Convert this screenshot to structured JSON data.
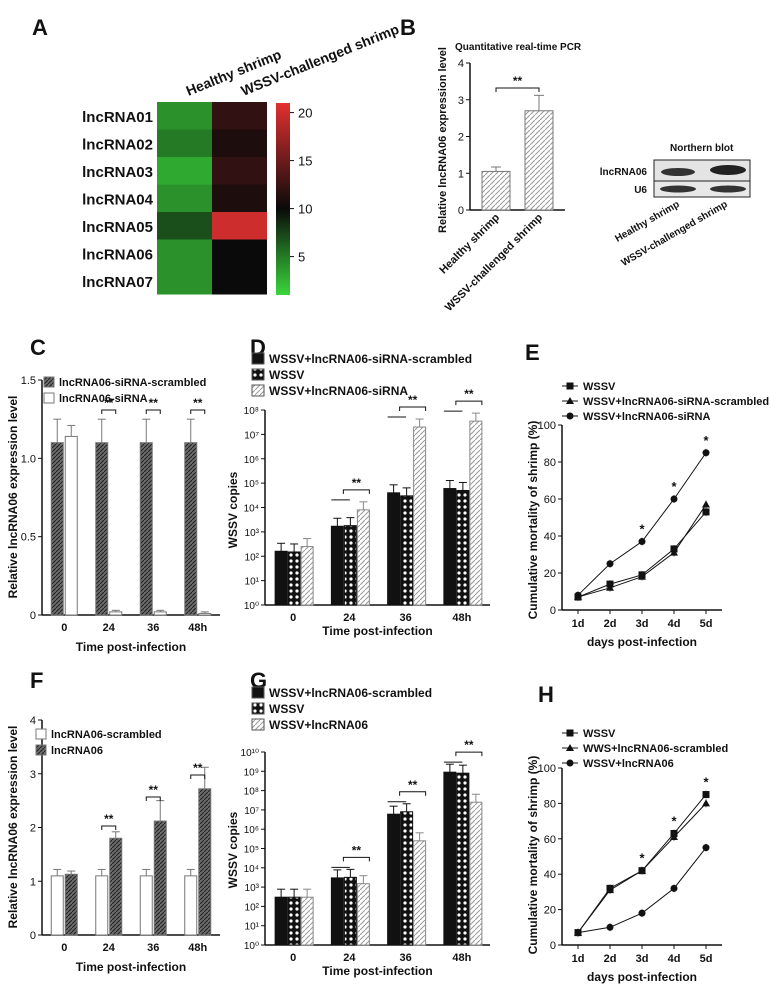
{
  "panel_letters": {
    "A": "A",
    "B": "B",
    "C": "C",
    "D": "D",
    "E": "E",
    "F": "F",
    "G": "G",
    "H": "H"
  },
  "chart_data": [
    {
      "id": "A",
      "type": "heatmap",
      "columns": [
        "Healthy shrimp",
        "WSSV-challenged shrimp"
      ],
      "rows": [
        "lncRNA01",
        "lncRNA02",
        "lncRNA03",
        "lncRNA04",
        "lncRNA05",
        "lncRNA06",
        "lncRNA07"
      ],
      "values": [
        [
          4,
          12
        ],
        [
          5,
          11
        ],
        [
          3,
          12
        ],
        [
          4,
          11
        ],
        [
          7,
          20
        ],
        [
          4,
          10
        ],
        [
          4,
          10
        ]
      ],
      "colorbar_ticks": [
        "20",
        "15",
        "10",
        "5"
      ],
      "colorbar_range": [
        1,
        21
      ],
      "colors": {
        "low": "#3bd63b",
        "mid": "#0a0a0a",
        "high": "#e23030"
      }
    },
    {
      "id": "B",
      "type": "bar",
      "title": "Quantitative real-time PCR",
      "ylabel": "Relative lncRNA06 expression level",
      "categories": [
        "Healthy shrimp",
        "WSSV-challenged shrimp"
      ],
      "values": [
        1.05,
        2.7
      ],
      "errors": [
        0.12,
        0.42
      ],
      "ylim": [
        0,
        4
      ],
      "yticks": [
        "0",
        "1",
        "2",
        "3",
        "4"
      ],
      "significance": [
        {
          "between": [
            0,
            1
          ],
          "label": "**"
        }
      ]
    },
    {
      "id": "blot",
      "type": "table",
      "title": "Northern blot",
      "row_labels": [
        "lncRNA06",
        "U6"
      ],
      "lanes": [
        "Healthy shrimp",
        "WSSV-challenged shrimp"
      ]
    },
    {
      "id": "C",
      "type": "bar",
      "ylabel": "Relative lncRNA06 expression level",
      "xlabel": "Time post-infection",
      "categories": [
        "0",
        "24",
        "36",
        "48h"
      ],
      "series": [
        {
          "name": "lncRNA06-siRNA-scrambled",
          "values": [
            1.1,
            1.1,
            1.1,
            1.1
          ],
          "errors": [
            0.15,
            0.15,
            0.15,
            0.15
          ]
        },
        {
          "name": "lncRNA06-siRNA",
          "values": [
            1.14,
            0.02,
            0.02,
            0.01
          ],
          "errors": [
            0.07,
            0.01,
            0.01,
            0.01
          ]
        }
      ],
      "ylim": [
        0,
        1.5
      ],
      "yticks": [
        "0",
        "0.5",
        "1.0",
        "1.5"
      ],
      "significance": [
        "",
        "**",
        "**",
        "**"
      ]
    },
    {
      "id": "D",
      "type": "bar",
      "scale": "log",
      "ylabel": "WSSV copies",
      "xlabel": "Time post-infection",
      "categories": [
        "0",
        "24",
        "36",
        "48h"
      ],
      "series": [
        {
          "name": "WSSV+lncRNA06-siRNA-scrambled",
          "values": [
            160,
            1700,
            40000,
            60000
          ]
        },
        {
          "name": "WSSV",
          "values": [
            150,
            1800,
            30000,
            50000
          ]
        },
        {
          "name": "WSSV+lncRNA06-siRNA",
          "values": [
            250,
            8000,
            20000000,
            35000000
          ]
        }
      ],
      "yticks": [
        "10⁰",
        "10¹",
        "10²",
        "10³",
        "10⁴",
        "10⁵",
        "10⁶",
        "10⁷",
        "10⁸"
      ],
      "ylim_exp": [
        0,
        8
      ],
      "significance": [
        "",
        "**",
        "**",
        "**"
      ]
    },
    {
      "id": "E",
      "type": "line",
      "ylabel": "Cumulative mortality of shrimp (%)",
      "xlabel": "days post-infection",
      "x": [
        "1d",
        "2d",
        "3d",
        "4d",
        "5d"
      ],
      "series": [
        {
          "name": "WSSV",
          "values": [
            7,
            14,
            19,
            33,
            53
          ]
        },
        {
          "name": "WSSV+lncRNA06-siRNA-scrambled",
          "values": [
            7,
            12,
            18,
            31,
            57
          ]
        },
        {
          "name": "WSSV+lncRNA06-siRNA",
          "values": [
            8,
            25,
            37,
            60,
            85
          ]
        }
      ],
      "ylim": [
        0,
        100
      ],
      "yticks": [
        "0",
        "20",
        "40",
        "60",
        "80",
        "100"
      ],
      "significance": [
        "",
        "",
        "*",
        "*",
        "*"
      ]
    },
    {
      "id": "F",
      "type": "bar",
      "ylabel": "Relative lncRNA06 expression level",
      "xlabel": "Time post-infection",
      "categories": [
        "0",
        "24",
        "36",
        "48h"
      ],
      "series": [
        {
          "name": "lncRNA06-scrambled",
          "values": [
            1.1,
            1.1,
            1.1,
            1.1
          ],
          "errors": [
            0.12,
            0.12,
            0.12,
            0.12
          ]
        },
        {
          "name": "lncRNA06",
          "values": [
            1.13,
            1.8,
            2.12,
            2.72
          ],
          "errors": [
            0.06,
            0.12,
            0.38,
            0.4
          ]
        }
      ],
      "ylim": [
        0,
        4
      ],
      "yticks": [
        "0",
        "1",
        "2",
        "3",
        "4"
      ],
      "significance": [
        "",
        "**",
        "**",
        "**"
      ]
    },
    {
      "id": "G",
      "type": "bar",
      "scale": "log",
      "ylabel": "WSSV copies",
      "xlabel": "Time post-infection",
      "categories": [
        "0",
        "24",
        "36",
        "48h"
      ],
      "series": [
        {
          "name": "WSSV+lncRNA06-scrambled",
          "values": [
            300,
            3000,
            6000000,
            900000000
          ]
        },
        {
          "name": "WSSV",
          "values": [
            300,
            3200,
            8000000,
            800000000
          ]
        },
        {
          "name": "WSSV+lncRNA06",
          "values": [
            300,
            1500,
            250000,
            25000000
          ]
        }
      ],
      "yticks": [
        "10⁰",
        "10¹",
        "10²",
        "10³",
        "10⁴",
        "10⁵",
        "10⁶",
        "10⁷",
        "10⁸",
        "10⁹",
        "10¹⁰"
      ],
      "ylim_exp": [
        0,
        10
      ],
      "significance": [
        "",
        "**",
        "**",
        "**"
      ]
    },
    {
      "id": "H",
      "type": "line",
      "ylabel": "Cumulative mortality of shrimp (%)",
      "xlabel": "days post-infection",
      "x": [
        "1d",
        "2d",
        "3d",
        "4d",
        "5d"
      ],
      "series": [
        {
          "name": "WSSV",
          "values": [
            7,
            32,
            42,
            63,
            85
          ]
        },
        {
          "name": "WWS+lncRNA06-scrambled",
          "values": [
            7,
            31,
            42,
            61,
            80
          ]
        },
        {
          "name": "WSSV+lncRNA06",
          "values": [
            7,
            10,
            18,
            32,
            55
          ]
        }
      ],
      "ylim": [
        0,
        100
      ],
      "yticks": [
        "0",
        "20",
        "40",
        "60",
        "80",
        "100"
      ],
      "significance": [
        "",
        "",
        "*",
        "*",
        "*"
      ]
    }
  ]
}
